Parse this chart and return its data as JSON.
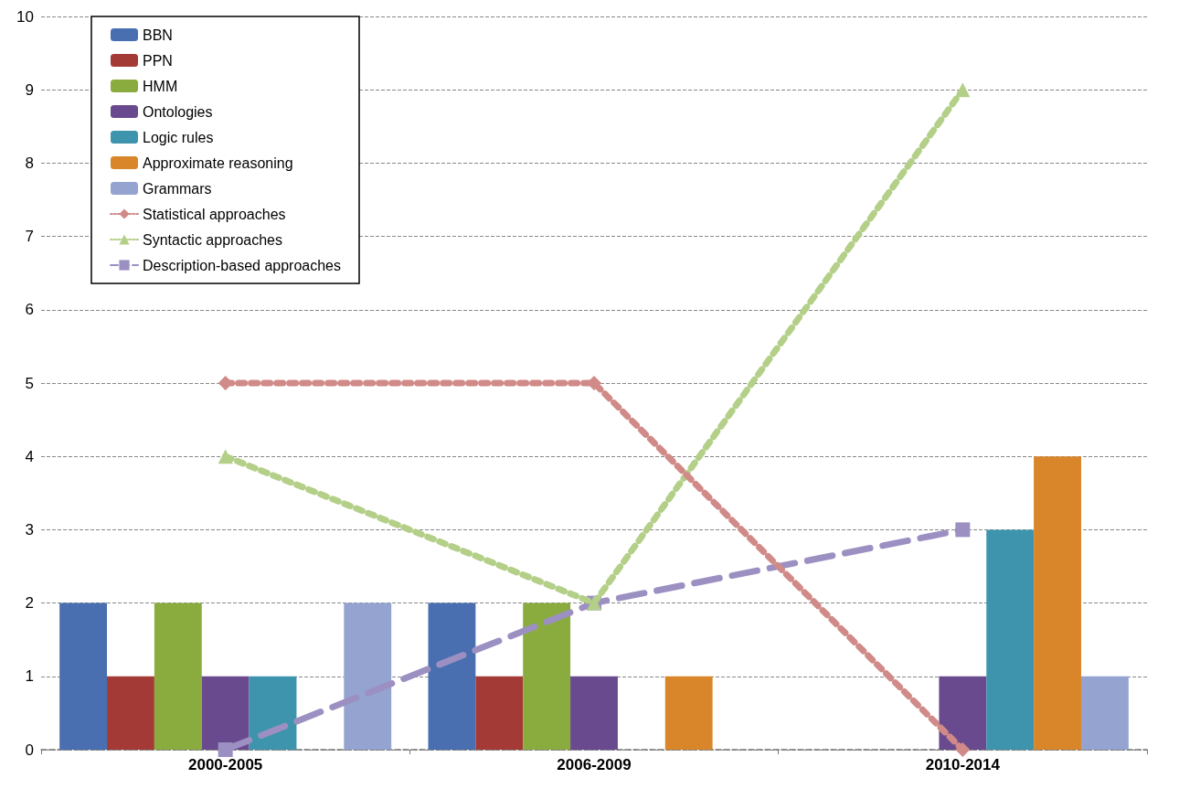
{
  "chart_data": {
    "type": "bar",
    "categories": [
      "2000-2005",
      "2006-2009",
      "2010-2014"
    ],
    "series": [
      {
        "name": "BBN",
        "color": "#4a6fb0",
        "values": [
          2,
          2,
          0
        ]
      },
      {
        "name": "PPN",
        "color": "#a33a36",
        "values": [
          1,
          1,
          0
        ]
      },
      {
        "name": "HMM",
        "color": "#8aac3e",
        "values": [
          2,
          2,
          0
        ]
      },
      {
        "name": "Ontologies",
        "color": "#6a4a8e",
        "values": [
          1,
          1,
          1
        ]
      },
      {
        "name": "Logic rules",
        "color": "#3f94ad",
        "values": [
          1,
          0,
          3
        ]
      },
      {
        "name": "Approximate reasoning",
        "color": "#d9862a",
        "values": [
          0,
          1,
          4
        ]
      },
      {
        "name": "Grammars",
        "color": "#94a3cf",
        "values": [
          2,
          0,
          1
        ]
      },
      {
        "name": "Statistical approaches",
        "type": "line",
        "color": "#d08a88",
        "marker": "diamond",
        "line_style": "dotted",
        "values": [
          5,
          5,
          0
        ]
      },
      {
        "name": "Syntactic approaches",
        "type": "line",
        "color": "#b3cf88",
        "marker": "triangle",
        "line_style": "dotted",
        "values": [
          4,
          2,
          9
        ]
      },
      {
        "name": "Description-based approaches",
        "type": "line",
        "color": "#9c90c2",
        "marker": "square",
        "line_style": "dashed",
        "values": [
          0,
          2,
          3
        ]
      }
    ],
    "ylim": [
      0,
      10
    ],
    "yticks": [
      0,
      1,
      2,
      3,
      4,
      5,
      6,
      7,
      8,
      9,
      10
    ],
    "grid": "y",
    "legend": "top left"
  }
}
